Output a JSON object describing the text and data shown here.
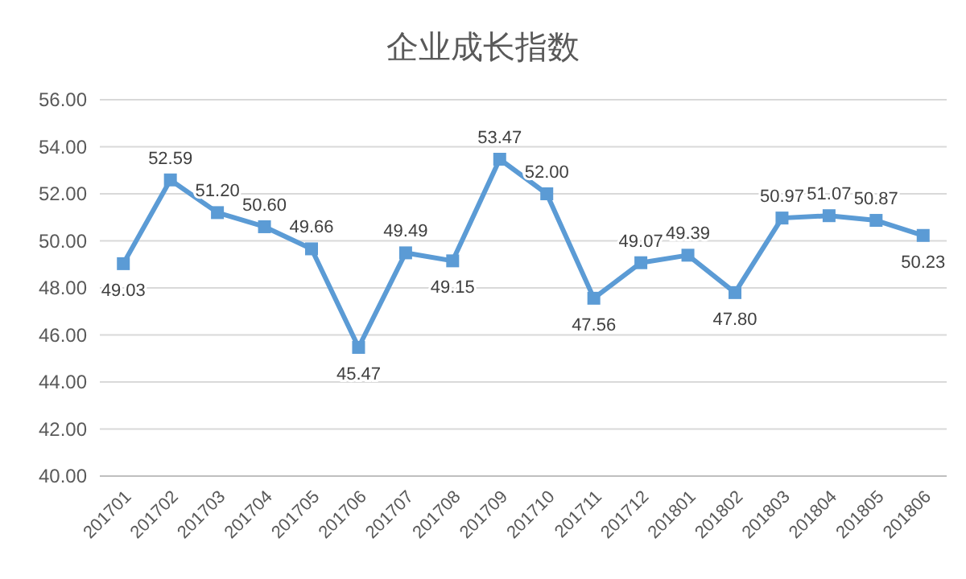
{
  "chart_data": {
    "type": "line",
    "title": "企业成长指数",
    "categories": [
      "201701",
      "201702",
      "201703",
      "201704",
      "201705",
      "201706",
      "201707",
      "201708",
      "201709",
      "201710",
      "201711",
      "201712",
      "201801",
      "201802",
      "201803",
      "201804",
      "201805",
      "201806"
    ],
    "series": [
      {
        "color": "#5b9bd5",
        "values": [
          49.03,
          52.59,
          51.2,
          50.6,
          49.66,
          45.47,
          49.49,
          49.15,
          53.47,
          52.0,
          47.56,
          49.07,
          49.39,
          47.8,
          50.97,
          51.07,
          50.87,
          50.23
        ]
      }
    ],
    "value_labels": [
      "49.03",
      "52.59",
      "51.20",
      "50.60",
      "49.66",
      "45.47",
      "49.49",
      "49.15",
      "53.47",
      "52.00",
      "47.56",
      "49.07",
      "49.39",
      "47.80",
      "50.97",
      "51.07",
      "50.87",
      "50.23"
    ],
    "ylim": [
      40,
      56
    ],
    "yticks": [
      {
        "value": 40,
        "label": "40.00"
      },
      {
        "value": 42,
        "label": "42.00"
      },
      {
        "value": 44,
        "label": "44.00"
      },
      {
        "value": 46,
        "label": "46.00"
      },
      {
        "value": 48,
        "label": "48.00"
      },
      {
        "value": 50,
        "label": "50.00"
      },
      {
        "value": 52,
        "label": "52.00"
      },
      {
        "value": 54,
        "label": "54.00"
      },
      {
        "value": 56,
        "label": "56.00"
      }
    ],
    "grid": "y",
    "marker": "square",
    "line_style": "solid"
  }
}
